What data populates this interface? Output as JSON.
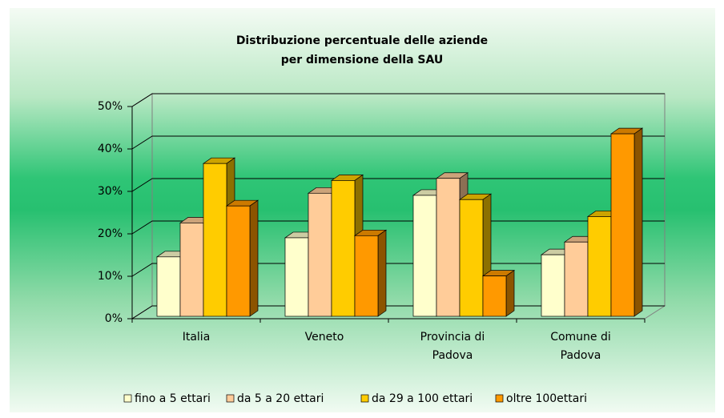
{
  "chart_data": {
    "type": "bar3d",
    "title": [
      "Distribuzione percentuale delle aziende",
      "per dimensione della SAU"
    ],
    "categories": [
      "Italia",
      "Veneto",
      "Provincia di Padova",
      "Comune di Padova"
    ],
    "series": [
      {
        "name": "fino a 5 ettari",
        "color": "#ffffcc",
        "values": [
          14,
          18.5,
          28.5,
          14.5
        ]
      },
      {
        "name": "da 5 a 20 ettari",
        "color": "#ffcc99",
        "values": [
          22,
          29,
          32.5,
          17.5
        ]
      },
      {
        "name": "da 29 a 100 ettari",
        "color": "#ffcc00",
        "values": [
          36,
          32,
          27.5,
          23.5
        ]
      },
      {
        "name": "oltre 100ettari",
        "color": "#ff9900",
        "values": [
          26,
          19,
          9.5,
          43
        ]
      }
    ],
    "ylim": [
      0,
      50
    ],
    "yticks": [
      {
        "value": 0,
        "label": "0%"
      },
      {
        "value": 10,
        "label": "10%"
      },
      {
        "value": 20,
        "label": "20%"
      },
      {
        "value": 30,
        "label": "30%"
      },
      {
        "value": 40,
        "label": "40%"
      },
      {
        "value": 50,
        "label": "50%"
      }
    ],
    "grid": true,
    "legend": "bottom"
  }
}
